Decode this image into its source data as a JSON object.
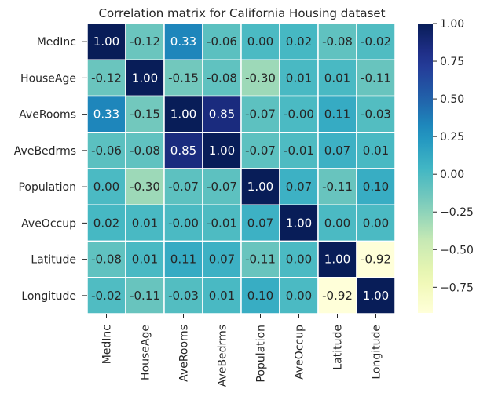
{
  "chart_data": {
    "type": "heatmap",
    "title": "Correlation matrix for California Housing dataset",
    "rows": [
      "MedInc",
      "HouseAge",
      "AveRooms",
      "AveBedrms",
      "Population",
      "AveOccup",
      "Latitude",
      "Longitude"
    ],
    "columns": [
      "MedInc",
      "HouseAge",
      "AveRooms",
      "AveBedrms",
      "Population",
      "AveOccup",
      "Latitude",
      "Longitude"
    ],
    "values": [
      [
        1.0,
        -0.12,
        0.33,
        -0.06,
        0.0,
        0.02,
        -0.08,
        -0.02
      ],
      [
        -0.12,
        1.0,
        -0.15,
        -0.08,
        -0.3,
        0.01,
        0.01,
        -0.11
      ],
      [
        0.33,
        -0.15,
        1.0,
        0.85,
        -0.07,
        -0.0,
        0.11,
        -0.03
      ],
      [
        -0.06,
        -0.08,
        0.85,
        1.0,
        -0.07,
        -0.01,
        0.07,
        0.01
      ],
      [
        0.0,
        -0.3,
        -0.07,
        -0.07,
        1.0,
        0.07,
        -0.11,
        0.1
      ],
      [
        0.02,
        0.01,
        -0.0,
        -0.01,
        0.07,
        1.0,
        0.0,
        0.0
      ],
      [
        -0.08,
        0.01,
        0.11,
        0.07,
        -0.11,
        0.0,
        1.0,
        -0.92
      ],
      [
        -0.02,
        -0.11,
        -0.03,
        0.01,
        0.1,
        0.0,
        -0.92,
        1.0
      ]
    ],
    "cell_labels": [
      [
        "1.00",
        "-0.12",
        "0.33",
        "-0.06",
        "0.00",
        "0.02",
        "-0.08",
        "-0.02"
      ],
      [
        "-0.12",
        "1.00",
        "-0.15",
        "-0.08",
        "-0.30",
        "0.01",
        "0.01",
        "-0.11"
      ],
      [
        "0.33",
        "-0.15",
        "1.00",
        "0.85",
        "-0.07",
        "-0.00",
        "0.11",
        "-0.03"
      ],
      [
        "-0.06",
        "-0.08",
        "0.85",
        "1.00",
        "-0.07",
        "-0.01",
        "0.07",
        "0.01"
      ],
      [
        "0.00",
        "-0.30",
        "-0.07",
        "-0.07",
        "1.00",
        "0.07",
        "-0.11",
        "0.10"
      ],
      [
        "0.02",
        "0.01",
        "-0.00",
        "-0.01",
        "0.07",
        "1.00",
        "0.00",
        "0.00"
      ],
      [
        "-0.08",
        "0.01",
        "0.11",
        "0.07",
        "-0.11",
        "0.00",
        "1.00",
        "-0.92"
      ],
      [
        "-0.02",
        "-0.11",
        "-0.03",
        "0.01",
        "0.10",
        "0.00",
        "-0.92",
        "1.00"
      ]
    ],
    "colormap": "YlGnBu",
    "vmin": -0.92,
    "vmax": 1.0,
    "colorbar_ticks": [
      1.0,
      0.75,
      0.5,
      0.25,
      0.0,
      -0.25,
      -0.5,
      -0.75
    ],
    "colorbar_tick_labels": [
      "1.00",
      "0.75",
      "0.50",
      "0.25",
      "0.00",
      "−0.25",
      "−0.50",
      "−0.75"
    ],
    "cell_border_color": "#ffffff"
  }
}
